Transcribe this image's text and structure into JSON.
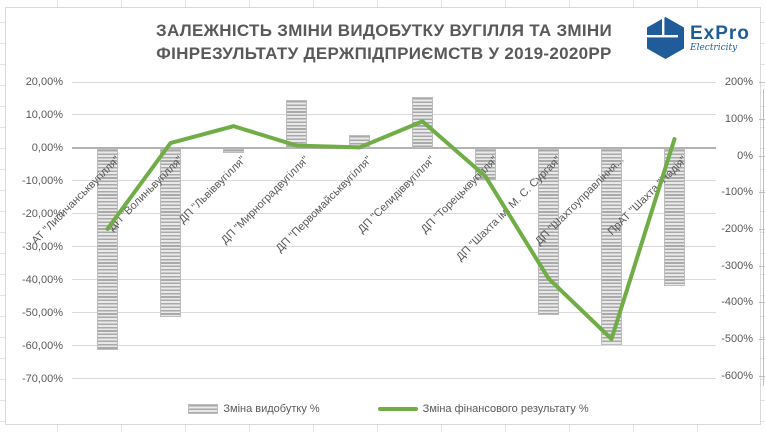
{
  "title": {
    "line1": "ЗАЛЕЖНІСТЬ ЗМІНИ ВИДОБУТКУ ВУГІЛЛЯ ТА ЗМІНИ",
    "line2": "ФІНРЕЗУЛЬТАТУ ДЕРЖПІДПРИЄМСТВ У 2019-2020РР",
    "full": "ЗАЛЕЖНІСТЬ ЗМІНИ ВИДОБУТКУ ВУГІЛЛЯ ТА ЗМІНИ ФІНРЕЗУЛЬТАТУ ДЕРЖПІДПРИЄМСТВ У 2019-2020РР"
  },
  "logo": {
    "name": "ExPro",
    "tagline": "Electricity",
    "brand_color": "#1f5c99"
  },
  "colors": {
    "title_text": "#595959",
    "axis_text": "#595959",
    "gridline": "#d9d9d9",
    "zero_line": "#b3b3b3",
    "bar_stripe_dark": "#a9a9a9",
    "bar_stripe_light": "#e9e9e9",
    "line_green": "#70ad47"
  },
  "chart_data": {
    "type": "combo-bar-line",
    "title": "ЗАЛЕЖНІСТЬ ЗМІНИ ВИДОБУТКУ ВУГІЛЛЯ ТА ЗМІНИ ФІНРЕЗУЛЬТАТУ ДЕРЖПІДПРИЄМСТВ У 2019-2020РР",
    "grid": true,
    "legend_position": "bottom",
    "categories": [
      "АТ \"Лисичанськвугілля\"",
      "ДП \"Волиньвугілля\"",
      "ДП \"Львіввугілля\"",
      "ДП \"Мирноградвугілля\"",
      "ДП \"Первомайськвугілля\"",
      "ДП \"Селидіввугілля\"",
      "ДП \"Торецьквугілля\"",
      "ДП \"Шахта ім. М. С. Сургая\"",
      "ДП \"Шахтоуправління...",
      "ПрАТ \"Шахта \"Надія\""
    ],
    "series": [
      {
        "name": "Зміна видобутку %",
        "type": "bar",
        "axis": "left",
        "values": [
          -61,
          -51,
          -1.3,
          14.5,
          4,
          15.4,
          -9.5,
          -50.5,
          -59.5,
          -41.5
        ]
      },
      {
        "name": "Зміна фінансового результату %",
        "type": "line",
        "axis": "right",
        "color": "#70ad47",
        "values": [
          -200,
          34,
          80,
          27,
          22,
          93,
          -57,
          -335,
          -500,
          45
        ]
      }
    ],
    "left_axis": {
      "min": -70,
      "max": 20,
      "step": 10,
      "ticks": [
        "20,00%",
        "10,00%",
        "0,00%",
        "-10,00%",
        "-20,00%",
        "-30,00%",
        "-40,00%",
        "-50,00%",
        "-60,00%",
        "-70,00%"
      ]
    },
    "right_axis": {
      "min": -600,
      "max": 200,
      "step": 100,
      "ticks": [
        "200%",
        "100%",
        "0%",
        "-100%",
        "-200%",
        "-300%",
        "-400%",
        "-500%",
        "-600%"
      ]
    }
  }
}
